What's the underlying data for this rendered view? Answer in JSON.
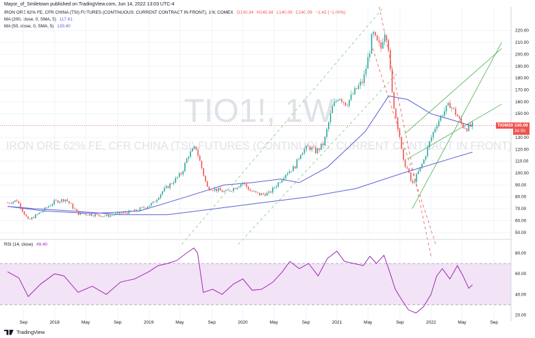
{
  "header": {
    "publisher_line": "Mayor_of_Smiletown published on TradingView.com, Jun 14, 2022 13:03 UTC-4"
  },
  "legend": {
    "main": {
      "title": "IRON ORE 62% FE, CFR CHINA (TSI) FUTURES (CONTINUOUS: CURRENT CONTRACT IN FRONT), 1W, COMEX",
      "o": "O140.34",
      "h": "H140.34",
      "l": "L140.09",
      "c": "C140.09",
      "chg": "−1.42 (−1.00%)"
    },
    "ma200": {
      "label": "MA (200, close, 0, SMA, 5)",
      "value": "117.61"
    },
    "ma50": {
      "label": "MA (50, close, 0, SMA, 5)",
      "value": "139.40"
    }
  },
  "watermark": {
    "symbol": "TIO1!, 1W",
    "name": "IRON ORE 62% FE, CFR CHINA (TSI) FUTURES (CONTINUOUS: CURRENT CONTRACT IN FRONT)"
  },
  "price_labels": {
    "contract": "TIOM2022",
    "last": "140.09",
    "countdown": "3d 5h"
  },
  "rsi": {
    "label": "RSI (14, close)",
    "value": "49.40"
  },
  "footer": {
    "brand": "TradingView"
  },
  "colors": {
    "up": "#26a69a",
    "down": "#ef5350",
    "ma": "#5b5fd6",
    "rsi": "#9c27b0",
    "rsi_band": "#f3e3f7",
    "channel": "#4caf50",
    "trend_down": "#ef5350"
  },
  "chart_data": [
    {
      "type": "candlestick",
      "title": "TIO1!, 1W",
      "ylim": [
        47,
        240
      ],
      "y_ticks": [
        50,
        60,
        70,
        80,
        90,
        100,
        110,
        120,
        130,
        140,
        150,
        160,
        170,
        180,
        190,
        200,
        210,
        220
      ],
      "x_ticks": [
        "Sep",
        "2018",
        "May",
        "Sep",
        "2019",
        "May",
        "Sep",
        "2020",
        "May",
        "Sep",
        "2021",
        "May",
        "Sep",
        "2022",
        "May",
        "Sep"
      ],
      "x_tick_dates": [
        2017.67,
        2018.0,
        2018.33,
        2018.67,
        2019.0,
        2019.33,
        2019.67,
        2020.0,
        2020.33,
        2020.67,
        2021.0,
        2021.33,
        2021.67,
        2022.0,
        2022.33,
        2022.67
      ],
      "price_path": [
        [
          2017.5,
          75
        ],
        [
          2017.6,
          77
        ],
        [
          2017.72,
          60
        ],
        [
          2017.85,
          67
        ],
        [
          2018.0,
          76
        ],
        [
          2018.12,
          78
        ],
        [
          2018.25,
          66
        ],
        [
          2018.4,
          65
        ],
        [
          2018.55,
          64
        ],
        [
          2018.7,
          66
        ],
        [
          2018.85,
          68
        ],
        [
          2018.98,
          72
        ],
        [
          2019.05,
          75
        ],
        [
          2019.15,
          85
        ],
        [
          2019.25,
          92
        ],
        [
          2019.35,
          100
        ],
        [
          2019.42,
          115
        ],
        [
          2019.5,
          122
        ],
        [
          2019.55,
          108
        ],
        [
          2019.62,
          88
        ],
        [
          2019.72,
          86
        ],
        [
          2019.82,
          84
        ],
        [
          2019.92,
          88
        ],
        [
          2020.0,
          92
        ],
        [
          2020.08,
          85
        ],
        [
          2020.18,
          82
        ],
        [
          2020.28,
          83
        ],
        [
          2020.38,
          92
        ],
        [
          2020.46,
          100
        ],
        [
          2020.55,
          105
        ],
        [
          2020.62,
          118
        ],
        [
          2020.7,
          122
        ],
        [
          2020.78,
          118
        ],
        [
          2020.86,
          125
        ],
        [
          2020.95,
          155
        ],
        [
          2021.02,
          165
        ],
        [
          2021.1,
          158
        ],
        [
          2021.2,
          170
        ],
        [
          2021.28,
          178
        ],
        [
          2021.34,
          200
        ],
        [
          2021.38,
          218
        ],
        [
          2021.42,
          210
        ],
        [
          2021.47,
          205
        ],
        [
          2021.5,
          220
        ],
        [
          2021.54,
          215
        ],
        [
          2021.58,
          170
        ],
        [
          2021.62,
          150
        ],
        [
          2021.66,
          135
        ],
        [
          2021.7,
          110
        ],
        [
          2021.74,
          105
        ],
        [
          2021.8,
          90
        ],
        [
          2021.86,
          100
        ],
        [
          2021.92,
          110
        ],
        [
          2021.98,
          125
        ],
        [
          2022.05,
          140
        ],
        [
          2022.12,
          150
        ],
        [
          2022.2,
          158
        ],
        [
          2022.28,
          148
        ],
        [
          2022.33,
          140
        ],
        [
          2022.38,
          138
        ],
        [
          2022.44,
          140.09
        ]
      ],
      "ma200": [
        [
          2017.5,
          72
        ],
        [
          2017.8,
          70
        ],
        [
          2018.2,
          68
        ],
        [
          2018.7,
          65
        ],
        [
          2019.2,
          65
        ],
        [
          2019.7,
          70
        ],
        [
          2020.2,
          75
        ],
        [
          2020.7,
          80
        ],
        [
          2021.2,
          87
        ],
        [
          2021.7,
          100
        ],
        [
          2022.2,
          112
        ],
        [
          2022.44,
          117.61
        ]
      ],
      "ma50": [
        [
          2017.5,
          72
        ],
        [
          2017.9,
          68
        ],
        [
          2018.4,
          66
        ],
        [
          2018.9,
          68
        ],
        [
          2019.4,
          80
        ],
        [
          2019.8,
          90
        ],
        [
          2020.1,
          92
        ],
        [
          2020.4,
          95
        ],
        [
          2020.6,
          92
        ],
        [
          2020.9,
          105
        ],
        [
          2021.3,
          135
        ],
        [
          2021.55,
          165
        ],
        [
          2021.75,
          162
        ],
        [
          2022.0,
          150
        ],
        [
          2022.3,
          143
        ],
        [
          2022.44,
          139.4
        ]
      ],
      "current_price": 140.09
    },
    {
      "type": "line",
      "title": "RSI (14, close)",
      "ylim": [
        17,
        90
      ],
      "y_ticks": [
        20,
        40,
        60,
        80
      ],
      "bands": [
        30,
        70
      ],
      "values": [
        [
          2017.5,
          62
        ],
        [
          2017.62,
          56
        ],
        [
          2017.72,
          38
        ],
        [
          2017.85,
          50
        ],
        [
          2018.0,
          60
        ],
        [
          2018.1,
          58
        ],
        [
          2018.25,
          42
        ],
        [
          2018.4,
          48
        ],
        [
          2018.55,
          40
        ],
        [
          2018.7,
          52
        ],
        [
          2018.85,
          55
        ],
        [
          2019.0,
          62
        ],
        [
          2019.1,
          68
        ],
        [
          2019.2,
          70
        ],
        [
          2019.3,
          73
        ],
        [
          2019.4,
          80
        ],
        [
          2019.48,
          85
        ],
        [
          2019.52,
          80
        ],
        [
          2019.58,
          42
        ],
        [
          2019.68,
          45
        ],
        [
          2019.78,
          40
        ],
        [
          2019.9,
          50
        ],
        [
          2020.0,
          55
        ],
        [
          2020.1,
          44
        ],
        [
          2020.2,
          45
        ],
        [
          2020.32,
          52
        ],
        [
          2020.42,
          62
        ],
        [
          2020.5,
          72
        ],
        [
          2020.6,
          65
        ],
        [
          2020.7,
          70
        ],
        [
          2020.8,
          58
        ],
        [
          2020.9,
          75
        ],
        [
          2021.0,
          82
        ],
        [
          2021.08,
          72
        ],
        [
          2021.18,
          70
        ],
        [
          2021.28,
          68
        ],
        [
          2021.35,
          77
        ],
        [
          2021.42,
          70
        ],
        [
          2021.5,
          78
        ],
        [
          2021.56,
          62
        ],
        [
          2021.62,
          45
        ],
        [
          2021.68,
          36
        ],
        [
          2021.76,
          25
        ],
        [
          2021.84,
          22
        ],
        [
          2021.92,
          28
        ],
        [
          2022.0,
          40
        ],
        [
          2022.06,
          58
        ],
        [
          2022.12,
          65
        ],
        [
          2022.2,
          55
        ],
        [
          2022.28,
          68
        ],
        [
          2022.34,
          58
        ],
        [
          2022.4,
          46
        ],
        [
          2022.44,
          49.4
        ]
      ]
    }
  ],
  "channels": {
    "green": [
      [
        [
          2021.8,
          70
        ],
        [
          2022.75,
          210
        ]
      ],
      [
        [
          2021.75,
          112
        ],
        [
          2022.75,
          158
        ]
      ],
      [
        [
          2021.72,
          133
        ],
        [
          2022.75,
          205
        ]
      ]
    ],
    "red_dashed": [
      [
        [
          2021.45,
          240
        ],
        [
          2022.0,
          30
        ]
      ],
      [
        [
          2021.38,
          205
        ],
        [
          2022.05,
          40
        ]
      ]
    ],
    "green_dashed": [
      [
        [
          2019.35,
          40
        ],
        [
          2021.5,
          240
        ]
      ],
      [
        [
          2019.95,
          40
        ],
        [
          2021.65,
          185
        ]
      ]
    ]
  }
}
